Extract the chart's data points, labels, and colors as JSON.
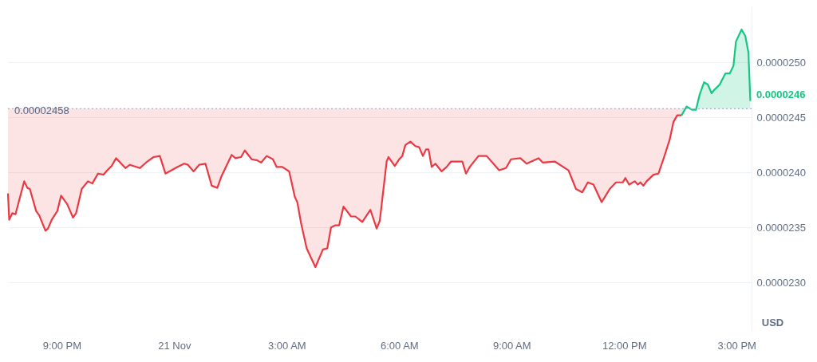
{
  "chart_data": {
    "type": "area",
    "ylabel": "USD",
    "xlim": [
      "--11-20T19:34",
      "--11-21T15:24"
    ],
    "ylim": [
      2.256e-05,
      2.551e-05
    ],
    "xticks": [
      {
        "value": "--11-20T21:00",
        "label": "9:00 PM"
      },
      {
        "value": "--11-21T00:00",
        "label": "21 Nov"
      },
      {
        "value": "--11-21T03:00",
        "label": "3:00 AM"
      },
      {
        "value": "--11-21T06:00",
        "label": "6:00 AM"
      },
      {
        "value": "--11-21T09:00",
        "label": "9:00 AM"
      },
      {
        "value": "--11-21T12:00",
        "label": "12:00 PM"
      },
      {
        "value": "--11-21T15:00",
        "label": "3:00 PM"
      }
    ],
    "yticks": [
      {
        "value": 2.3e-05,
        "label": "0.0000230"
      },
      {
        "value": 2.35e-05,
        "label": "0.0000235"
      },
      {
        "value": 2.4e-05,
        "label": "0.0000240"
      },
      {
        "value": 2.45e-05,
        "label": "0.0000245"
      },
      {
        "value": 2.5e-05,
        "label": "0.0000250"
      }
    ],
    "grid": "y",
    "line_style": "solid",
    "ref_lines": [
      {
        "axis": "y",
        "value": 2.458e-05,
        "label": "0.00002458",
        "color": "#a6b0c3",
        "line_style": "dotted"
      }
    ],
    "annotations": [
      "0.0000246"
    ],
    "series": [
      {
        "color": "#ea3943",
        "type": "line",
        "lower": [
          2.381e-05,
          2.357e-05,
          2.363e-05,
          2.362e-05,
          2.392e-05,
          2.386e-05,
          2.385e-05,
          2.365e-05,
          2.361e-05,
          2.347e-05,
          2.349e-05,
          2.357e-05,
          2.365e-05,
          2.379e-05,
          2.371e-05,
          2.359e-05,
          2.363e-05,
          2.385e-05,
          2.392e-05,
          2.39e-05,
          2.399e-05,
          2.398e-05,
          2.402e-05,
          2.406e-05,
          2.413e-05,
          2.404e-05,
          2.407e-05,
          2.404e-05,
          2.41e-05,
          2.414e-05,
          2.415e-05,
          2.399e-05,
          2.405e-05,
          2.408e-05,
          2.407e-05,
          2.401e-05,
          2.407e-05,
          2.408e-05,
          2.388e-05,
          2.386e-05,
          2.397e-05,
          2.416e-05,
          2.413e-05,
          2.414e-05,
          2.42e-05,
          2.412e-05,
          2.411e-05,
          2.409e-05,
          2.415e-05,
          2.412e-05,
          2.405e-05,
          2.405e-05,
          2.401e-05,
          2.378e-05,
          2.373e-05,
          2.354e-05,
          2.331e-05,
          2.314e-05,
          2.33e-05,
          2.331e-05,
          2.35e-05,
          2.352e-05,
          2.352e-05,
          2.369e-05,
          2.36e-05,
          2.36e-05,
          2.355e-05,
          2.366e-05,
          2.349e-05,
          2.356e-05,
          2.41e-05,
          2.414e-05,
          2.406e-05,
          2.412e-05,
          2.415e-05,
          2.425e-05,
          2.428e-05,
          2.424e-05,
          2.423e-05,
          2.415e-05,
          2.421e-05,
          2.421e-05,
          2.405e-05,
          2.408e-05,
          2.401e-05,
          2.405e-05,
          2.41e-05,
          2.41e-05,
          2.399e-05,
          2.405e-05,
          2.415e-05,
          2.415e-05,
          2.402e-05,
          2.404e-05,
          2.412e-05,
          2.413e-05,
          2.408e-05,
          2.413e-05,
          2.409e-05,
          2.41e-05,
          2.402e-05,
          2.385e-05,
          2.382e-05,
          2.391e-05,
          2.389e-05,
          2.373e-05,
          2.385e-05,
          2.391e-05,
          2.391e-05,
          2.395e-05,
          2.389e-05,
          2.392e-05,
          2.389e-05,
          2.391e-05,
          2.388e-05,
          2.392e-05,
          2.398e-05,
          2.399e-05,
          2.414e-05,
          2.43e-05,
          2.446e-05,
          2.452e-05,
          2.452e-05
        ],
        "upper": [
          2.458e-05,
          2.458e-05,
          2.458e-05,
          2.458e-05,
          2.458e-05,
          2.458e-05,
          2.458e-05,
          2.458e-05,
          2.458e-05,
          2.458e-05,
          2.458e-05,
          2.458e-05,
          2.458e-05,
          2.458e-05,
          2.458e-05,
          2.458e-05,
          2.458e-05,
          2.458e-05,
          2.458e-05,
          2.458e-05,
          2.458e-05,
          2.458e-05,
          2.458e-05,
          2.458e-05,
          2.458e-05,
          2.458e-05,
          2.458e-05,
          2.458e-05,
          2.458e-05,
          2.458e-05,
          2.458e-05,
          2.458e-05,
          2.458e-05,
          2.458e-05,
          2.458e-05,
          2.458e-05,
          2.458e-05,
          2.458e-05,
          2.458e-05,
          2.458e-05,
          2.458e-05,
          2.458e-05,
          2.458e-05,
          2.458e-05,
          2.458e-05,
          2.458e-05,
          2.458e-05,
          2.458e-05,
          2.458e-05,
          2.458e-05,
          2.458e-05,
          2.458e-05,
          2.458e-05,
          2.458e-05,
          2.458e-05,
          2.458e-05,
          2.458e-05,
          2.458e-05,
          2.458e-05,
          2.458e-05,
          2.458e-05,
          2.458e-05,
          2.458e-05,
          2.458e-05,
          2.458e-05,
          2.458e-05,
          2.458e-05,
          2.458e-05,
          2.458e-05,
          2.458e-05,
          2.458e-05,
          2.458e-05,
          2.458e-05,
          2.458e-05,
          2.458e-05,
          2.458e-05,
          2.458e-05,
          2.458e-05,
          2.458e-05,
          2.458e-05,
          2.458e-05,
          2.458e-05,
          2.458e-05,
          2.458e-05,
          2.458e-05,
          2.458e-05,
          2.458e-05,
          2.458e-05,
          2.458e-05,
          2.458e-05,
          2.458e-05,
          2.458e-05,
          2.458e-05,
          2.458e-05,
          2.458e-05,
          2.458e-05,
          2.458e-05,
          2.458e-05,
          2.458e-05,
          2.458e-05,
          2.458e-05,
          2.458e-05,
          2.458e-05,
          2.458e-05,
          2.458e-05,
          2.458e-05,
          2.458e-05,
          2.458e-05,
          2.458e-05,
          2.458e-05,
          2.458e-05,
          2.458e-05,
          2.458e-05,
          2.458e-05,
          2.458e-05,
          2.458e-05,
          2.458e-05,
          2.458e-05,
          2.458e-05,
          2.458e-05,
          2.458e-05,
          2.458e-05,
          2.458e-05
        ],
        "x": [
          "--11-20T19:34",
          "--11-20T19:36",
          "--11-20T19:41",
          "--11-20T19:46",
          "--11-20T20:00",
          "--11-20T20:05",
          "--11-20T20:09",
          "--11-20T20:19",
          "--11-20T20:24",
          "--11-20T20:34",
          "--11-20T20:38",
          "--11-20T20:44",
          "--11-20T20:53",
          "--11-20T20:59",
          "--11-20T21:09",
          "--11-20T21:18",
          "--11-20T21:23",
          "--11-20T21:32",
          "--11-20T21:42",
          "--11-20T21:49",
          "--11-20T21:58",
          "--11-20T22:07",
          "--11-20T22:13",
          "--11-20T22:20",
          "--11-20T22:27",
          "--11-20T22:42",
          "--11-20T22:49",
          "--11-20T23:05",
          "--11-20T23:17",
          "--11-20T23:27",
          "--11-20T23:37",
          "--11-20T23:46",
          "--11-21T00:05",
          "--11-21T00:16",
          "--11-21T00:22",
          "--11-21T00:31",
          "--11-21T00:40",
          "--11-21T00:50",
          "--11-21T01:00",
          "--11-21T01:09",
          "--11-21T01:16",
          "--11-21T01:32",
          "--11-21T01:38",
          "--11-21T01:47",
          "--11-21T01:53",
          "--11-21T02:04",
          "--11-21T02:13",
          "--11-21T02:19",
          "--11-21T02:28",
          "--11-21T02:38",
          "--11-21T02:44",
          "--11-21T02:53",
          "--11-21T03:04",
          "--11-21T03:13",
          "--11-21T03:17",
          "--11-21T03:23",
          "--11-21T03:32",
          "--11-21T03:46",
          "--11-21T03:58",
          "--11-21T04:05",
          "--11-21T04:11",
          "--11-21T04:18",
          "--11-21T04:24",
          "--11-21T04:31",
          "--11-21T04:43",
          "--11-21T04:50",
          "--11-21T05:01",
          "--11-21T05:14",
          "--11-21T05:24",
          "--11-21T05:29",
          "--11-21T05:40",
          "--11-21T05:43",
          "--11-21T05:53",
          "--11-21T06:00",
          "--11-21T06:05",
          "--11-21T06:10",
          "--11-21T06:18",
          "--11-21T06:26",
          "--11-21T06:32",
          "--11-21T06:38",
          "--11-21T06:43",
          "--11-21T06:47",
          "--11-21T06:52",
          "--11-21T06:58",
          "--11-21T07:08",
          "--11-21T07:16",
          "--11-21T07:23",
          "--11-21T07:41",
          "--11-21T07:47",
          "--11-21T07:53",
          "--11-21T08:07",
          "--11-21T08:20",
          "--11-21T08:40",
          "--11-21T08:51",
          "--11-21T08:59",
          "--11-21T09:14",
          "--11-21T09:24",
          "--11-21T09:43",
          "--11-21T09:50",
          "--11-21T10:09",
          "--11-21T10:31",
          "--11-21T10:43",
          "--11-21T10:53",
          "--11-21T11:02",
          "--11-21T11:11",
          "--11-21T11:24",
          "--11-21T11:37",
          "--11-21T11:47",
          "--11-21T11:58",
          "--11-21T12:02",
          "--11-21T12:08",
          "--11-21T12:17",
          "--11-21T12:22",
          "--11-21T12:26",
          "--11-21T12:31",
          "--11-21T12:36",
          "--11-21T12:47",
          "--11-21T12:55",
          "--11-21T13:04",
          "--11-21T13:13",
          "--11-21T13:19",
          "--11-21T13:25",
          "--11-21T13:32"
        ],
        "values": [
          2.381e-05,
          2.357e-05,
          2.363e-05,
          2.362e-05,
          2.392e-05,
          2.386e-05,
          2.385e-05,
          2.365e-05,
          2.361e-05,
          2.347e-05,
          2.349e-05,
          2.357e-05,
          2.365e-05,
          2.379e-05,
          2.371e-05,
          2.359e-05,
          2.363e-05,
          2.385e-05,
          2.392e-05,
          2.39e-05,
          2.399e-05,
          2.398e-05,
          2.402e-05,
          2.406e-05,
          2.413e-05,
          2.404e-05,
          2.407e-05,
          2.404e-05,
          2.41e-05,
          2.414e-05,
          2.415e-05,
          2.399e-05,
          2.405e-05,
          2.408e-05,
          2.407e-05,
          2.401e-05,
          2.407e-05,
          2.408e-05,
          2.388e-05,
          2.386e-05,
          2.397e-05,
          2.416e-05,
          2.413e-05,
          2.414e-05,
          2.42e-05,
          2.412e-05,
          2.411e-05,
          2.409e-05,
          2.415e-05,
          2.412e-05,
          2.405e-05,
          2.405e-05,
          2.401e-05,
          2.378e-05,
          2.373e-05,
          2.354e-05,
          2.331e-05,
          2.314e-05,
          2.33e-05,
          2.331e-05,
          2.35e-05,
          2.352e-05,
          2.352e-05,
          2.369e-05,
          2.36e-05,
          2.36e-05,
          2.355e-05,
          2.366e-05,
          2.349e-05,
          2.356e-05,
          2.41e-05,
          2.414e-05,
          2.406e-05,
          2.412e-05,
          2.415e-05,
          2.425e-05,
          2.428e-05,
          2.424e-05,
          2.423e-05,
          2.415e-05,
          2.421e-05,
          2.421e-05,
          2.405e-05,
          2.408e-05,
          2.401e-05,
          2.405e-05,
          2.41e-05,
          2.41e-05,
          2.399e-05,
          2.405e-05,
          2.415e-05,
          2.415e-05,
          2.402e-05,
          2.404e-05,
          2.412e-05,
          2.413e-05,
          2.408e-05,
          2.413e-05,
          2.409e-05,
          2.41e-05,
          2.402e-05,
          2.385e-05,
          2.382e-05,
          2.391e-05,
          2.389e-05,
          2.373e-05,
          2.385e-05,
          2.391e-05,
          2.391e-05,
          2.395e-05,
          2.389e-05,
          2.392e-05,
          2.389e-05,
          2.391e-05,
          2.388e-05,
          2.392e-05,
          2.398e-05,
          2.399e-05,
          2.414e-05,
          2.43e-05,
          2.446e-05,
          2.452e-05,
          2.452e-05
        ]
      },
      {
        "color": "#16c784",
        "x": [
          "--11-21T13:32",
          "--11-21T13:40",
          "--11-21T13:49",
          "--11-21T13:55",
          "--11-21T14:01",
          "--11-21T14:08",
          "--11-21T14:14",
          "--11-21T14:20",
          "--11-21T14:24",
          "--11-21T14:33",
          "--11-21T14:42",
          "--11-21T14:49",
          "--11-21T14:55",
          "--11-21T14:59",
          "--11-21T15:08",
          "--11-21T15:14",
          "--11-21T15:19",
          "--11-21T15:22"
        ],
        "values": [
          2.452e-05,
          2.46e-05,
          2.457e-05,
          2.457e-05,
          2.471e-05,
          2.482e-05,
          2.48e-05,
          2.472e-05,
          2.475e-05,
          2.48e-05,
          2.49e-05,
          2.49e-05,
          2.497e-05,
          2.519e-05,
          2.53e-05,
          2.524e-05,
          2.509e-05,
          2.465e-05
        ]
      }
    ]
  }
}
